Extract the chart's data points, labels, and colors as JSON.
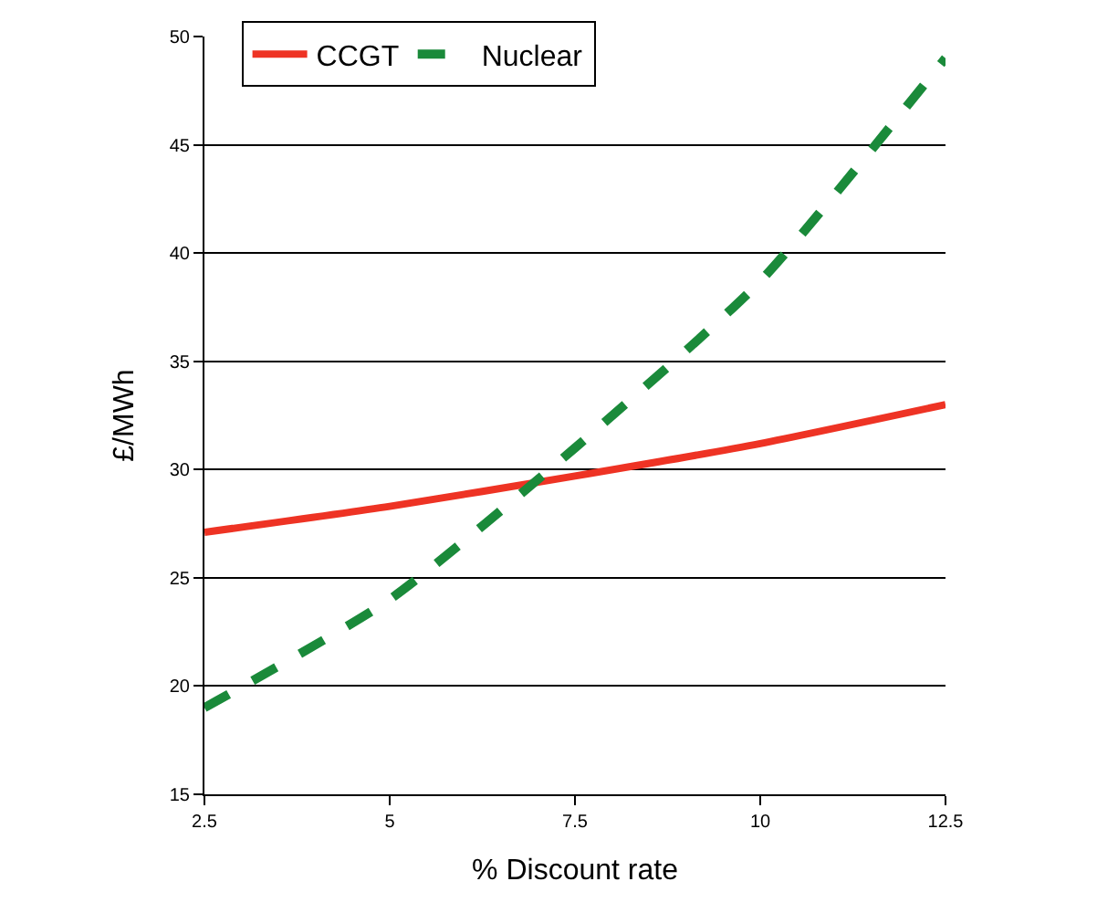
{
  "chart_data": {
    "type": "line",
    "xlabel": "% Discount rate",
    "ylabel": "£/MWh",
    "x": [
      2.5,
      5,
      7.5,
      10,
      12.5
    ],
    "series": [
      {
        "name": "CCGT",
        "color": "#ee3324",
        "values": [
          27.1,
          28.3,
          29.7,
          31.2,
          33.0
        ],
        "line_style": "solid"
      },
      {
        "name": "Nuclear",
        "color": "#1a8a3a",
        "values": [
          19.0,
          24.0,
          31.0,
          38.7,
          49.0
        ],
        "line_style": "dashed"
      }
    ],
    "xlim": [
      2.5,
      12.5
    ],
    "xticks": [
      2.5,
      5,
      7.5,
      10,
      12.5
    ],
    "ylim": [
      15,
      50
    ],
    "yticks": [
      15,
      20,
      25,
      30,
      35,
      40,
      45,
      50
    ],
    "grid": "y",
    "legend": "top",
    "marker": "none"
  }
}
